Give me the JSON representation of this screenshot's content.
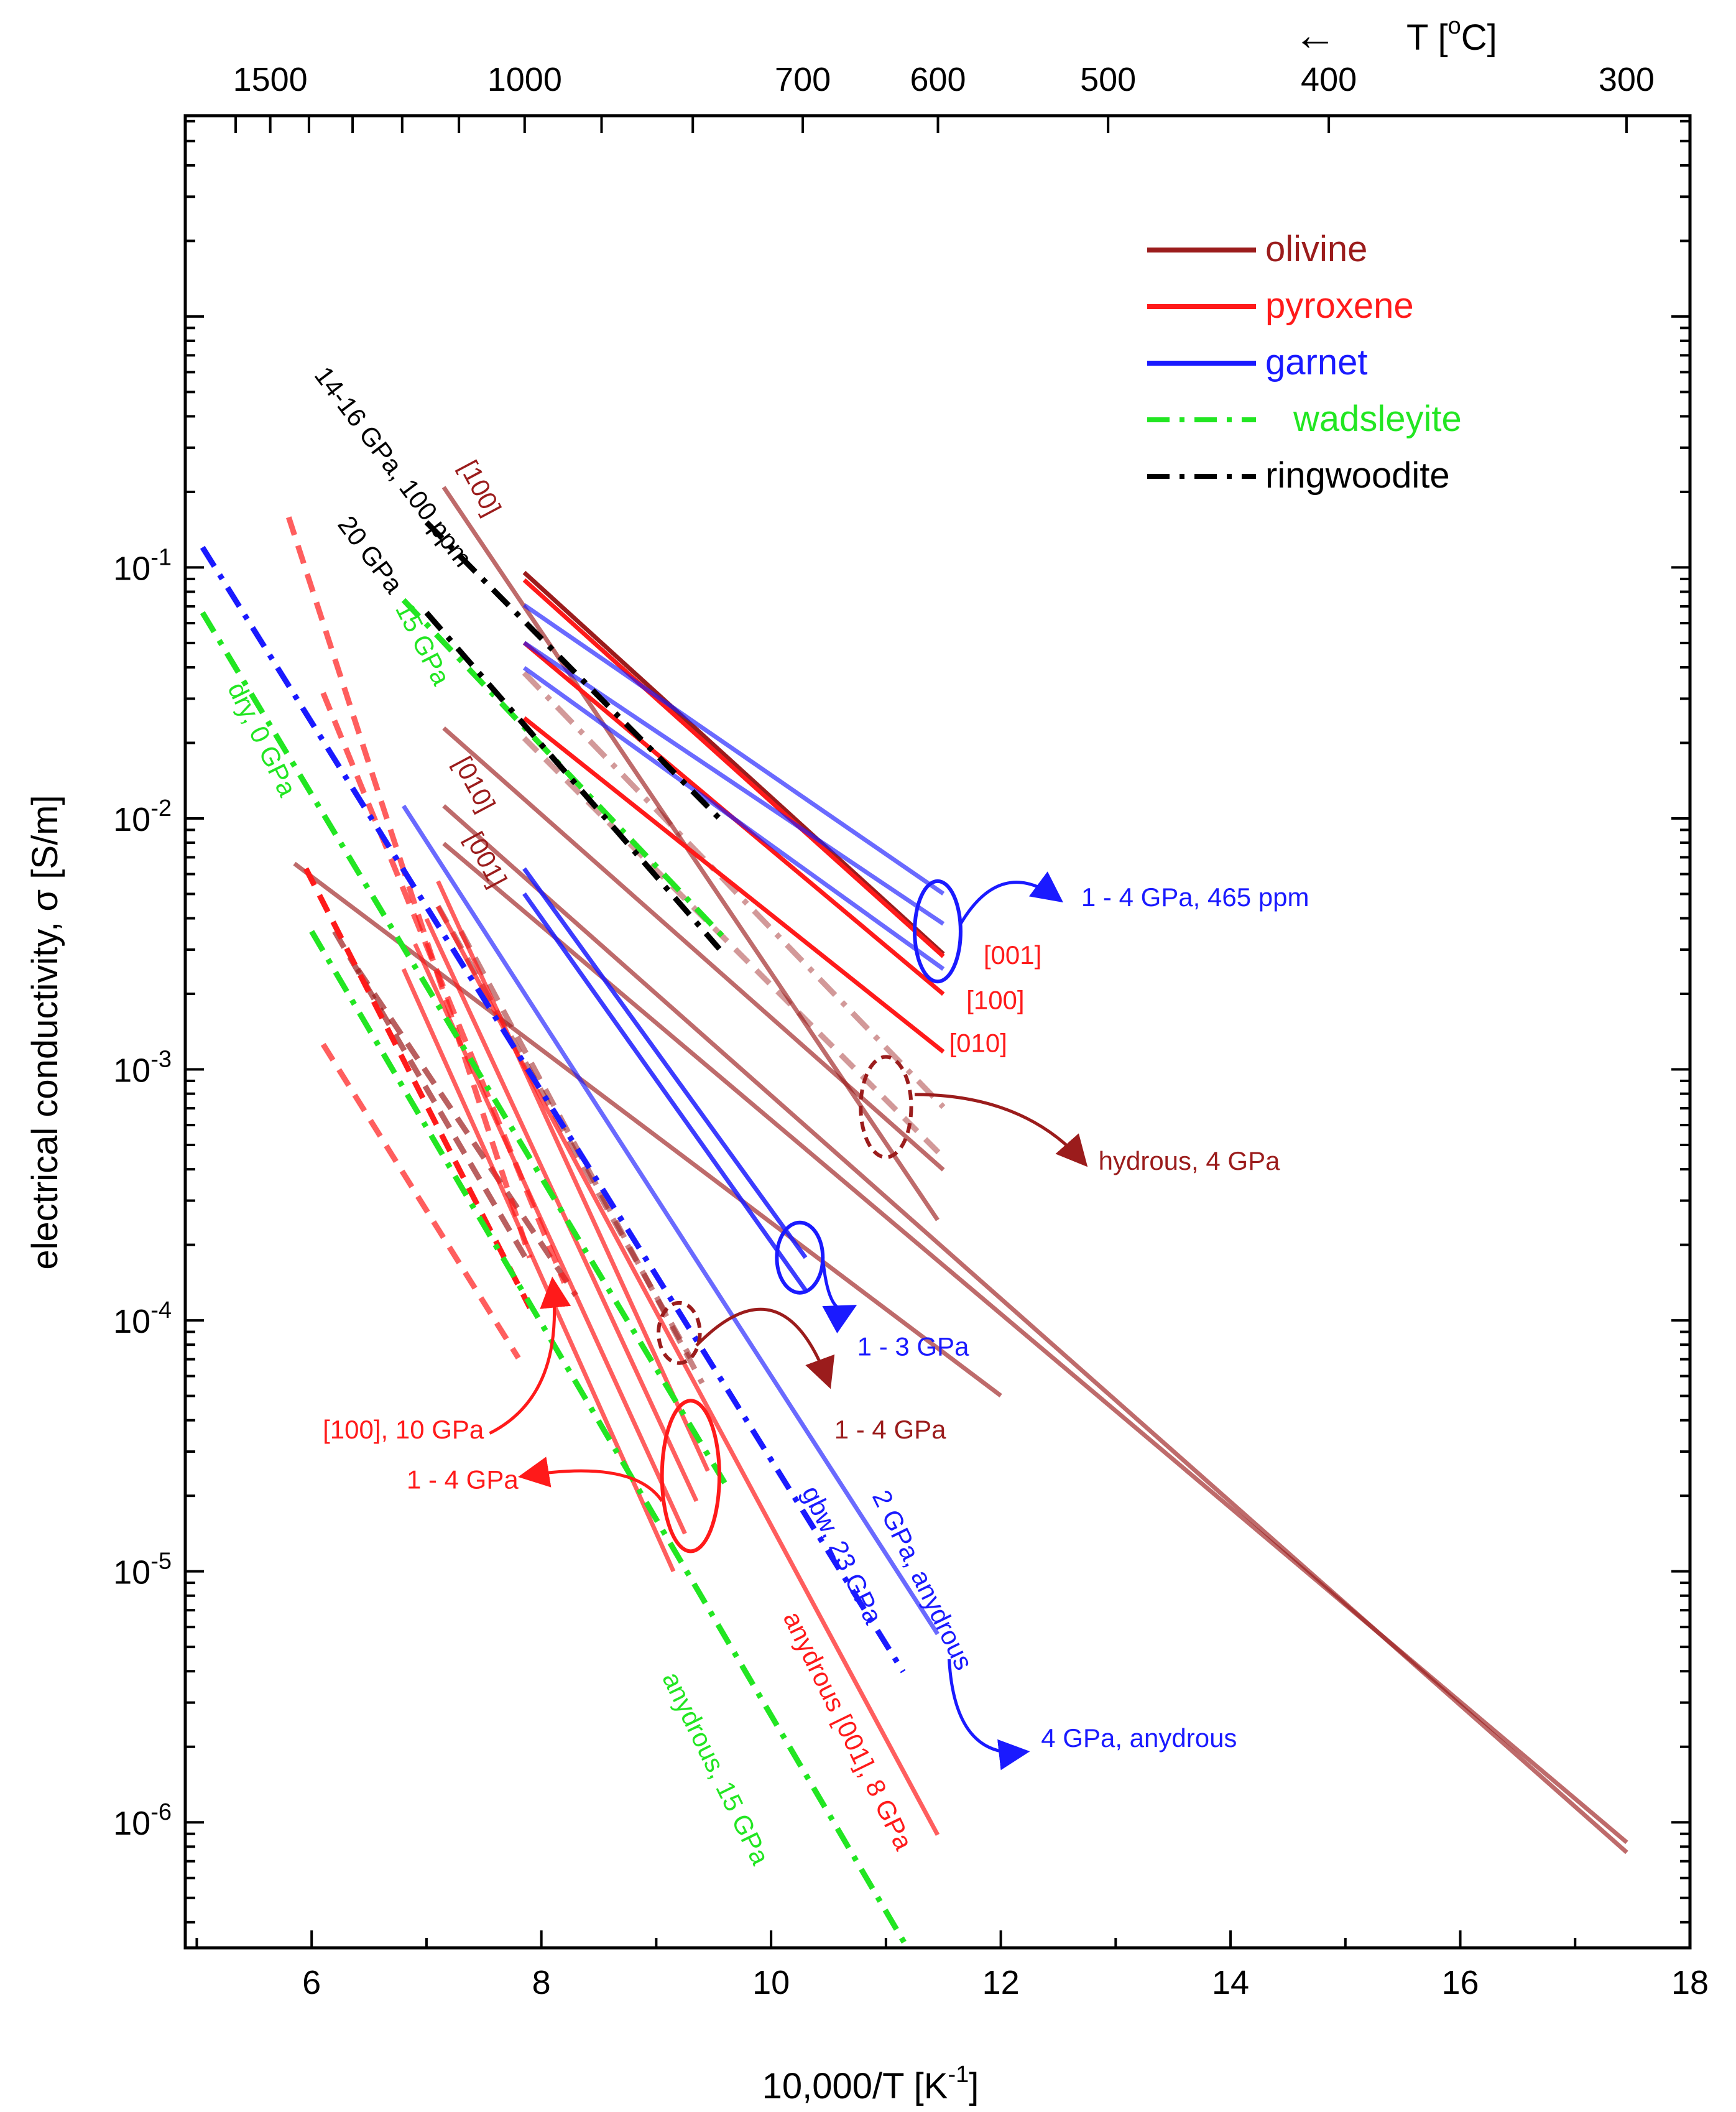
{
  "chart_data": {
    "type": "line",
    "xlabel": "10,000/T [K",
    "xlabel_sup": "-1",
    "xlabel_end": "]",
    "ylabel": "electrical conductivity, σ [S/m]",
    "top_axis_label": "T [",
    "top_axis_label_sup": "o",
    "top_axis_label_end": "C]",
    "top_axis_arrow": "←",
    "xlim": [
      4.9,
      18
    ],
    "ylim_log10": [
      -6.5,
      0.8
    ],
    "x_ticks": [
      "6",
      "8",
      "10",
      "12",
      "14",
      "16",
      "18"
    ],
    "x_tick_values": [
      6,
      8,
      10,
      12,
      14,
      16,
      18
    ],
    "y_ticks": [
      {
        "base": "10",
        "exp": "-1",
        "log10": -1
      },
      {
        "base": "10",
        "exp": "-2",
        "log10": -2
      },
      {
        "base": "10",
        "exp": "-3",
        "log10": -3
      },
      {
        "base": "10",
        "exp": "-4",
        "log10": -4
      },
      {
        "base": "10",
        "exp": "-5",
        "log10": -5
      },
      {
        "base": "10",
        "exp": "-6",
        "log10": -6
      }
    ],
    "top_ticks": [
      {
        "label": "1500",
        "celsius": 1500
      },
      {
        "label": "1000",
        "celsius": 1000
      },
      {
        "label": "700",
        "celsius": 700
      },
      {
        "label": "600",
        "celsius": 600
      },
      {
        "label": "500",
        "celsius": 500
      },
      {
        "label": "400",
        "celsius": 400
      },
      {
        "label": "300",
        "celsius": 300
      }
    ],
    "legend_position": "top-right",
    "legend": [
      {
        "label": "olivine",
        "color": "#9b1c1c",
        "dash": "solid"
      },
      {
        "label": "pyroxene",
        "color": "#ff1a1a",
        "dash": "solid"
      },
      {
        "label": "garnet",
        "color": "#1a1aff",
        "dash": "solid"
      },
      {
        "label": "wadsleyite",
        "color": "#22e622",
        "dash": "dashdot"
      },
      {
        "label": "ringwoodite",
        "color": "#000000",
        "dash": "dashdot"
      }
    ],
    "colors": {
      "olivine": "#9b1c1c",
      "olivine_light": "#b86060",
      "pyroxene": "#ff1a1a",
      "pyroxene_light": "#ff6666",
      "garnet": "#1a1aff",
      "garnet_light": "#6060ff",
      "wadsleyite": "#22e622",
      "ringwoodite": "#000000"
    },
    "series": [
      {
        "group": "olivine",
        "style": "solid",
        "opacity": 0.65,
        "x": [
          7.15,
          11.45
        ],
        "log10y": [
          -0.68,
          -3.6
        ]
      },
      {
        "group": "olivine",
        "style": "solid",
        "opacity": 0.65,
        "x": [
          7.15,
          11.5
        ],
        "log10y": [
          -1.64,
          -3.4
        ]
      },
      {
        "group": "olivine",
        "style": "solid",
        "opacity": 0.65,
        "x": [
          7.15,
          17.45
        ],
        "log10y": [
          -1.95,
          -6.12
        ]
      },
      {
        "group": "olivine",
        "style": "solid",
        "opacity": 0.65,
        "x": [
          7.15,
          17.45
        ],
        "log10y": [
          -2.1,
          -6.08
        ]
      },
      {
        "group": "olivine",
        "style": "solid",
        "opacity": 0.65,
        "x": [
          5.85,
          12.0
        ],
        "log10y": [
          -2.18,
          -4.3
        ]
      },
      {
        "group": "olivine",
        "style": "solid",
        "opacity": 1.0,
        "x": [
          7.85,
          11.5
        ],
        "log10y": [
          -1.02,
          -2.54
        ]
      },
      {
        "group": "olivine",
        "style": "dashdot",
        "opacity": 0.45,
        "x": [
          7.85,
          11.5
        ],
        "log10y": [
          -1.42,
          -3.15
        ]
      },
      {
        "group": "olivine",
        "style": "dashed",
        "opacity": 0.45,
        "x": [
          7.85,
          11.5
        ],
        "log10y": [
          -1.68,
          -3.35
        ]
      },
      {
        "group": "olivine",
        "style": "dashed",
        "opacity": 0.7,
        "x": [
          6.2,
          7.9
        ],
        "log10y": [
          -2.45,
          -3.78
        ]
      },
      {
        "group": "olivine",
        "style": "dashed",
        "opacity": 0.7,
        "x": [
          6.4,
          8.3
        ],
        "log10y": [
          -2.6,
          -3.9
        ]
      },
      {
        "group": "olivine",
        "style": "dashed",
        "opacity": 0.55,
        "x": [
          7.1,
          9.3
        ],
        "log10y": [
          -2.35,
          -4.15
        ]
      },
      {
        "group": "olivine",
        "style": "dashed",
        "opacity": 0.55,
        "x": [
          7.3,
          9.4
        ],
        "log10y": [
          -2.45,
          -4.25
        ]
      },
      {
        "group": "pyroxene",
        "style": "solid",
        "opacity": 1.0,
        "x": [
          7.85,
          11.5
        ],
        "log10y": [
          -1.05,
          -2.55
        ]
      },
      {
        "group": "pyroxene",
        "style": "solid",
        "opacity": 1.0,
        "x": [
          7.85,
          11.5
        ],
        "log10y": [
          -1.3,
          -2.7
        ]
      },
      {
        "group": "pyroxene",
        "style": "solid",
        "opacity": 1.0,
        "x": [
          7.85,
          11.5
        ],
        "log10y": [
          -1.6,
          -2.93
        ]
      },
      {
        "group": "pyroxene",
        "style": "solid",
        "opacity": 0.7,
        "x": [
          7.1,
          11.45
        ],
        "log10y": [
          -2.35,
          -6.05
        ]
      },
      {
        "group": "pyroxene",
        "style": "solid",
        "opacity": 0.7,
        "x": [
          7.1,
          9.45
        ],
        "log10y": [
          -2.25,
          -4.6
        ]
      },
      {
        "group": "pyroxene",
        "style": "solid",
        "opacity": 0.7,
        "x": [
          7.0,
          9.35
        ],
        "log10y": [
          -2.4,
          -4.72
        ]
      },
      {
        "group": "pyroxene",
        "style": "solid",
        "opacity": 0.7,
        "x": [
          6.9,
          9.25
        ],
        "log10y": [
          -2.5,
          -4.85
        ]
      },
      {
        "group": "pyroxene",
        "style": "solid",
        "opacity": 0.7,
        "x": [
          6.8,
          9.15
        ],
        "log10y": [
          -2.6,
          -5.0
        ]
      },
      {
        "group": "pyroxene",
        "style": "dashed",
        "opacity": 0.7,
        "x": [
          5.8,
          7.9
        ],
        "log10y": [
          -0.8,
          -3.75
        ]
      },
      {
        "group": "pyroxene",
        "style": "dashed",
        "opacity": 0.7,
        "x": [
          6.1,
          8.2
        ],
        "log10y": [
          -1.5,
          -3.85
        ]
      },
      {
        "group": "pyroxene",
        "style": "dashed",
        "opacity": 1.0,
        "x": [
          5.95,
          7.9
        ],
        "log10y": [
          -2.2,
          -3.95
        ]
      },
      {
        "group": "pyroxene",
        "style": "dashed",
        "opacity": 0.7,
        "x": [
          6.1,
          7.8
        ],
        "log10y": [
          -2.9,
          -4.15
        ]
      },
      {
        "group": "garnet",
        "style": "solid",
        "opacity": 0.65,
        "x": [
          7.85,
          11.5
        ],
        "log10y": [
          -1.15,
          -2.3
        ]
      },
      {
        "group": "garnet",
        "style": "solid",
        "opacity": 0.65,
        "x": [
          7.85,
          11.5
        ],
        "log10y": [
          -1.3,
          -2.42
        ]
      },
      {
        "group": "garnet",
        "style": "solid",
        "opacity": 0.65,
        "x": [
          7.85,
          11.5
        ],
        "log10y": [
          -1.4,
          -2.6
        ]
      },
      {
        "group": "garnet",
        "style": "solid",
        "opacity": 0.65,
        "x": [
          6.8,
          11.45
        ],
        "log10y": [
          -1.95,
          -5.25
        ]
      },
      {
        "group": "garnet",
        "style": "solid",
        "opacity": 0.85,
        "x": [
          7.85,
          10.3
        ],
        "log10y": [
          -2.2,
          -3.75
        ]
      },
      {
        "group": "garnet",
        "style": "solid",
        "opacity": 0.85,
        "x": [
          7.85,
          10.3
        ],
        "log10y": [
          -2.3,
          -3.88
        ]
      },
      {
        "group": "garnet",
        "style": "dashdot",
        "opacity": 1.0,
        "x": [
          5.05,
          11.15
        ],
        "log10y": [
          -0.92,
          -5.4
        ]
      },
      {
        "group": "wadsleyite",
        "style": "dashdot",
        "opacity": 1.0,
        "x": [
          6.8,
          9.6
        ],
        "log10y": [
          -1.13,
          -2.48
        ]
      },
      {
        "group": "wadsleyite",
        "style": "dashdot",
        "opacity": 1.0,
        "x": [
          5.05,
          9.6
        ],
        "log10y": [
          -1.18,
          -4.65
        ]
      },
      {
        "group": "wadsleyite",
        "style": "dashdot",
        "opacity": 1.0,
        "x": [
          6.0,
          11.25
        ],
        "log10y": [
          -2.45,
          -6.55
        ]
      },
      {
        "group": "ringwoodite",
        "style": "dashdot",
        "opacity": 1.0,
        "x": [
          7.0,
          9.55
        ],
        "log10y": [
          -0.82,
          -2.0
        ]
      },
      {
        "group": "ringwoodite",
        "style": "dashdot",
        "opacity": 1.0,
        "x": [
          7.0,
          9.55
        ],
        "log10y": [
          -1.18,
          -2.52
        ]
      }
    ],
    "ellipses": [
      {
        "x": 11.45,
        "log10y": -2.45,
        "rx_data": 0.2,
        "ry_log": 0.2,
        "color": "#1a1aff",
        "style": "solid"
      },
      {
        "x": 11.0,
        "log10y": -3.15,
        "rx_data": 0.22,
        "ry_log": 0.2,
        "color": "#9b1c1c",
        "style": "dashed"
      },
      {
        "x": 10.25,
        "log10y": -3.75,
        "rx_data": 0.2,
        "ry_log": 0.14,
        "color": "#1a1aff",
        "style": "solid"
      },
      {
        "x": 9.2,
        "log10y": -4.05,
        "rx_data": 0.18,
        "ry_log": 0.12,
        "color": "#9b1c1c",
        "style": "dashed"
      },
      {
        "x": 9.3,
        "log10y": -4.62,
        "rx_data": 0.25,
        "ry_log": 0.3,
        "color": "#ff1a1a",
        "style": "solid"
      }
    ],
    "annotations": [
      {
        "text": "1 - 4 GPa, 465 ppm",
        "group": "garnet",
        "x": 12.7,
        "log10y": -2.35,
        "anchor": "start",
        "rotate": 0
      },
      {
        "text": "[001]",
        "group": "pyroxene",
        "x": 11.85,
        "log10y": -2.58,
        "anchor": "start",
        "rotate": 0
      },
      {
        "text": "[100]",
        "group": "pyroxene",
        "x": 11.7,
        "log10y": -2.76,
        "anchor": "start",
        "rotate": 0
      },
      {
        "text": "[010]",
        "group": "pyroxene",
        "x": 11.55,
        "log10y": -2.93,
        "anchor": "start",
        "rotate": 0
      },
      {
        "text": "hydrous, 4 GPa",
        "group": "olivine",
        "x": 12.85,
        "log10y": -3.4,
        "anchor": "start",
        "rotate": 0
      },
      {
        "text": "1 - 3 GPa",
        "group": "garnet",
        "x": 10.75,
        "log10y": -4.14,
        "anchor": "start",
        "rotate": 0
      },
      {
        "text": "1 - 4 GPa",
        "group": "olivine",
        "x": 10.55,
        "log10y": -4.47,
        "anchor": "start",
        "rotate": 0
      },
      {
        "text": "[100], 10 GPa",
        "group": "pyroxene",
        "x": 7.5,
        "log10y": -4.47,
        "anchor": "end",
        "rotate": 0
      },
      {
        "text": "1 - 4 GPa",
        "group": "pyroxene",
        "x": 7.8,
        "log10y": -4.67,
        "anchor": "end",
        "rotate": 0
      },
      {
        "text": "4 GPa, anydrous",
        "group": "garnet",
        "x": 12.35,
        "log10y": -5.7,
        "anchor": "start",
        "rotate": 0
      },
      {
        "text": "[100]",
        "group": "olivine",
        "x": 7.4,
        "log10y": -0.7,
        "anchor": "middle",
        "rotate": 62
      },
      {
        "text": "[010]",
        "group": "olivine",
        "x": 7.35,
        "log10y": -1.88,
        "anchor": "middle",
        "rotate": 62
      },
      {
        "text": "[001]",
        "group": "olivine",
        "x": 7.45,
        "log10y": -2.18,
        "anchor": "middle",
        "rotate": 62
      },
      {
        "text": "14-16 GPa, 100 ppm",
        "group": "ringwoodite",
        "x": 6.65,
        "log10y": -0.62,
        "anchor": "middle",
        "rotate": 53
      },
      {
        "text": "20 GPa",
        "group": "ringwoodite",
        "x": 6.45,
        "log10y": -0.97,
        "anchor": "middle",
        "rotate": 53
      },
      {
        "text": "15 GPa",
        "group": "wadsleyite",
        "x": 6.9,
        "log10y": -1.32,
        "anchor": "middle",
        "rotate": 63
      },
      {
        "text": "dry, 0 GPa",
        "group": "wadsleyite",
        "x": 5.5,
        "log10y": -1.7,
        "anchor": "middle",
        "rotate": 64
      },
      {
        "text": "gbw, 23 GPa",
        "group": "garnet",
        "x": 10.55,
        "log10y": -4.95,
        "anchor": "middle",
        "rotate": 64,
        "large": true
      },
      {
        "text": "2 GPa, anydrous",
        "group": "garnet",
        "x": 11.25,
        "log10y": -5.05,
        "anchor": "middle",
        "rotate": 64
      },
      {
        "text": "anydrous [001], 8 GPa",
        "group": "pyroxene",
        "x": 10.6,
        "log10y": -5.65,
        "anchor": "middle",
        "rotate": 64
      },
      {
        "text": "anydrous, 15 GPa",
        "group": "wadsleyite",
        "x": 9.45,
        "log10y": -5.8,
        "anchor": "middle",
        "rotate": 64
      }
    ],
    "arrows": [
      {
        "group": "garnet",
        "from": [
          11.65,
          -2.42
        ],
        "ctrl": [
          12.0,
          -2.15
        ],
        "to": [
          12.5,
          -2.32
        ]
      },
      {
        "group": "olivine",
        "from": [
          11.25,
          -3.1
        ],
        "ctrl": [
          12.2,
          -3.1
        ],
        "to": [
          12.72,
          -3.37
        ]
      },
      {
        "group": "garnet",
        "from": [
          10.45,
          -3.75
        ],
        "ctrl": [
          10.5,
          -4.0
        ],
        "to": [
          10.7,
          -3.95
        ]
      },
      {
        "group": "olivine",
        "from": [
          9.35,
          -4.1
        ],
        "ctrl": [
          10.1,
          -3.75
        ],
        "to": [
          10.5,
          -4.25
        ]
      },
      {
        "group": "pyroxene",
        "from": [
          7.55,
          -4.45
        ],
        "ctrl": [
          8.2,
          -4.3
        ],
        "to": [
          8.1,
          -3.85
        ]
      },
      {
        "group": "pyroxene",
        "from": [
          9.05,
          -4.72
        ],
        "ctrl": [
          8.8,
          -4.55
        ],
        "to": [
          7.85,
          -4.62
        ]
      },
      {
        "group": "garnet",
        "from": [
          11.55,
          -5.35
        ],
        "ctrl": [
          11.6,
          -5.75
        ],
        "to": [
          12.2,
          -5.72
        ]
      }
    ]
  }
}
